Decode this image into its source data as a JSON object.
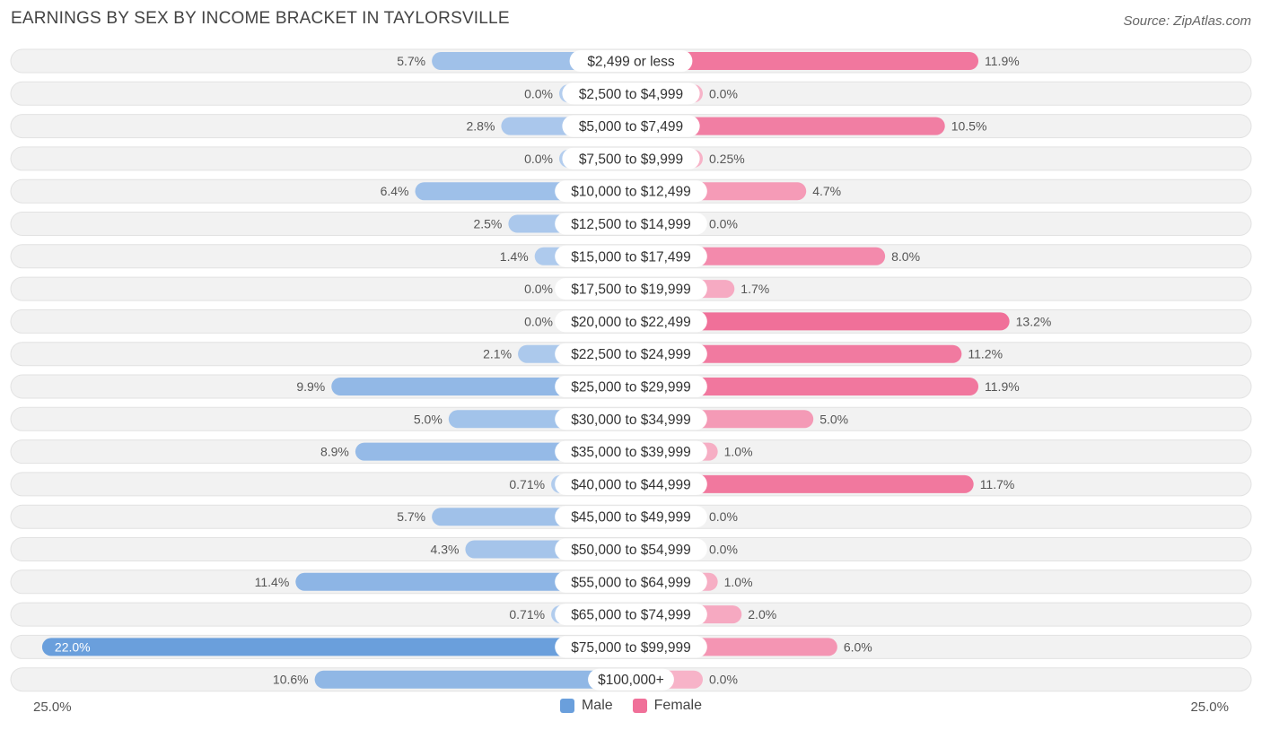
{
  "title": "EARNINGS BY SEX BY INCOME BRACKET IN TAYLORSVILLE",
  "source": "Source: ZipAtlas.com",
  "axis": {
    "left_label": "25.0%",
    "right_label": "25.0%"
  },
  "legend": [
    {
      "label": "Male",
      "color": "#6a9fdc"
    },
    {
      "label": "Female",
      "color": "#f07099"
    }
  ],
  "chart_data": {
    "type": "bar",
    "orientation": "horizontal-diverging",
    "title": "EARNINGS BY SEX BY INCOME BRACKET IN TAYLORSVILLE",
    "xlim": [
      -25.0,
      25.0
    ],
    "categories": [
      "$2,499 or less",
      "$2,500 to $4,999",
      "$5,000 to $7,499",
      "$7,500 to $9,999",
      "$10,000 to $12,499",
      "$12,500 to $14,999",
      "$15,000 to $17,499",
      "$17,500 to $19,999",
      "$20,000 to $22,499",
      "$22,500 to $24,999",
      "$25,000 to $29,999",
      "$30,000 to $34,999",
      "$35,000 to $39,999",
      "$40,000 to $44,999",
      "$45,000 to $49,999",
      "$50,000 to $54,999",
      "$55,000 to $64,999",
      "$65,000 to $74,999",
      "$75,000 to $99,999",
      "$100,000+"
    ],
    "series": [
      {
        "name": "Male",
        "values": [
          5.7,
          0.0,
          2.8,
          0.0,
          6.4,
          2.5,
          1.4,
          0.0,
          0.0,
          2.1,
          9.9,
          5.0,
          8.9,
          0.71,
          5.7,
          4.3,
          11.4,
          0.71,
          22.0,
          10.6
        ],
        "labels": [
          "5.7%",
          "0.0%",
          "2.8%",
          "0.0%",
          "6.4%",
          "2.5%",
          "1.4%",
          "0.0%",
          "0.0%",
          "2.1%",
          "9.9%",
          "5.0%",
          "8.9%",
          "0.71%",
          "5.7%",
          "4.3%",
          "11.4%",
          "0.71%",
          "22.0%",
          "10.6%"
        ]
      },
      {
        "name": "Female",
        "values": [
          11.9,
          0.0,
          10.5,
          0.25,
          4.7,
          0.0,
          8.0,
          1.7,
          13.2,
          11.2,
          11.9,
          5.0,
          1.0,
          11.7,
          0.0,
          0.0,
          1.0,
          2.0,
          6.0,
          0.0
        ],
        "labels": [
          "11.9%",
          "0.0%",
          "10.5%",
          "0.25%",
          "4.7%",
          "0.0%",
          "8.0%",
          "1.7%",
          "13.2%",
          "11.2%",
          "11.9%",
          "5.0%",
          "1.0%",
          "11.7%",
          "0.0%",
          "0.0%",
          "1.0%",
          "2.0%",
          "6.0%",
          "0.0%"
        ]
      }
    ]
  }
}
